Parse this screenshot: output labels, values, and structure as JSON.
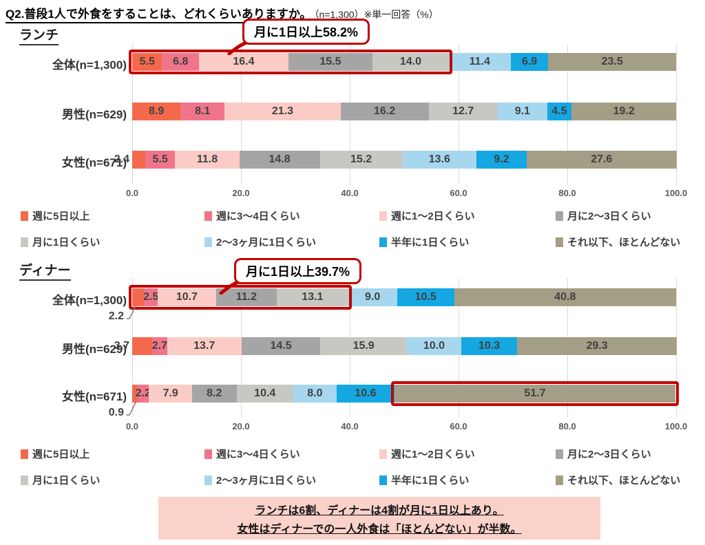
{
  "header": {
    "title": "Q2.普段1人で外食をすることは、どれくらいありますか。",
    "subtitle": "（n=1,300）※単一回答（%）"
  },
  "chart_data": [
    {
      "type": "bar",
      "stacked": true,
      "orientation": "horizontal",
      "title": "ランチ",
      "callout": "月に1日以上58.2%",
      "categories": [
        "全体(n=1,300)",
        "男性(n=629)",
        "女性(n=671)"
      ],
      "series": [
        {
          "name": "週に5日以上",
          "color": "#F4694C",
          "values": [
            5.5,
            8.9,
            2.4
          ]
        },
        {
          "name": "週に3～4日くらい",
          "color": "#F0758B",
          "values": [
            6.8,
            8.1,
            5.5
          ]
        },
        {
          "name": "週に1～2日くらい",
          "color": "#FBCCC6",
          "values": [
            16.4,
            21.3,
            11.8
          ]
        },
        {
          "name": "月に2～3日くらい",
          "color": "#A5A5A5",
          "values": [
            15.5,
            16.2,
            14.8
          ]
        },
        {
          "name": "月に1日くらい",
          "color": "#C8C8C3",
          "values": [
            14.0,
            12.7,
            15.2
          ]
        },
        {
          "name": "2～3ヶ月に1日くらい",
          "color": "#A7D7EE",
          "values": [
            11.4,
            9.1,
            13.6
          ]
        },
        {
          "name": "半年に1日くらい",
          "color": "#14A7E1",
          "values": [
            6.9,
            4.5,
            9.2
          ]
        },
        {
          "name": "それ以下、ほとんどない",
          "color": "#A49E86",
          "values": [
            23.5,
            19.2,
            27.6
          ]
        }
      ],
      "x_ticks": [
        "0.0",
        "20.0",
        "40.0",
        "60.0",
        "80.0",
        "100.0"
      ],
      "xlim": [
        0,
        100
      ],
      "legend_position": "bottom",
      "highlights": [
        {
          "row": 0,
          "from": 0,
          "to": 58.2
        }
      ],
      "value_label_placement": [
        {
          "row": 2,
          "segment": 0,
          "mode": "outside-left"
        }
      ]
    },
    {
      "type": "bar",
      "stacked": true,
      "orientation": "horizontal",
      "title": "ディナー",
      "callout": "月に1日以上39.7%",
      "categories": [
        "全体(n=1,300)",
        "男性(n=629)",
        "女性(n=671)"
      ],
      "series": [
        {
          "name": "週に5日以上",
          "color": "#F4694C",
          "values": [
            2.2,
            3.7,
            0.9
          ]
        },
        {
          "name": "週に3～4日くらい",
          "color": "#F0758B",
          "values": [
            2.5,
            2.7,
            2.2
          ]
        },
        {
          "name": "週に1～2日くらい",
          "color": "#FBCCC6",
          "values": [
            10.7,
            13.7,
            7.9
          ]
        },
        {
          "name": "月に2～3日くらい",
          "color": "#A5A5A5",
          "values": [
            11.2,
            14.5,
            8.2
          ]
        },
        {
          "name": "月に1日くらい",
          "color": "#C8C8C3",
          "values": [
            13.1,
            15.9,
            10.4
          ]
        },
        {
          "name": "2～3ヶ月に1日くらい",
          "color": "#A7D7EE",
          "values": [
            9.0,
            10.0,
            8.0
          ]
        },
        {
          "name": "半年に1日くらい",
          "color": "#14A7E1",
          "values": [
            10.5,
            10.3,
            10.6
          ]
        },
        {
          "name": "それ以下、ほとんどない",
          "color": "#A49E86",
          "values": [
            40.8,
            29.3,
            51.7
          ]
        }
      ],
      "x_ticks": [
        "0.0",
        "20.0",
        "40.0",
        "60.0",
        "80.0",
        "100.0"
      ],
      "xlim": [
        0,
        100
      ],
      "legend_position": "bottom",
      "highlights": [
        {
          "row": 0,
          "from": 0,
          "to": 39.7
        },
        {
          "row": 2,
          "segment": 7
        }
      ],
      "value_label_placement": [
        {
          "row": 0,
          "segment": 0,
          "mode": "below-leader"
        },
        {
          "row": 1,
          "segment": 0,
          "mode": "outside-left"
        },
        {
          "row": 2,
          "segment": 0,
          "mode": "below-leader"
        }
      ]
    }
  ],
  "note": {
    "line1": "ランチは6割、ディナーは4割が月に1日以上あり。",
    "line2": "女性はディナーでの一人外食は「ほとんどない」が半数。"
  },
  "colors": {
    "highlight_red": "#C00000",
    "note_bg": "#FAD2CA",
    "grid": "#D9D9D9"
  }
}
